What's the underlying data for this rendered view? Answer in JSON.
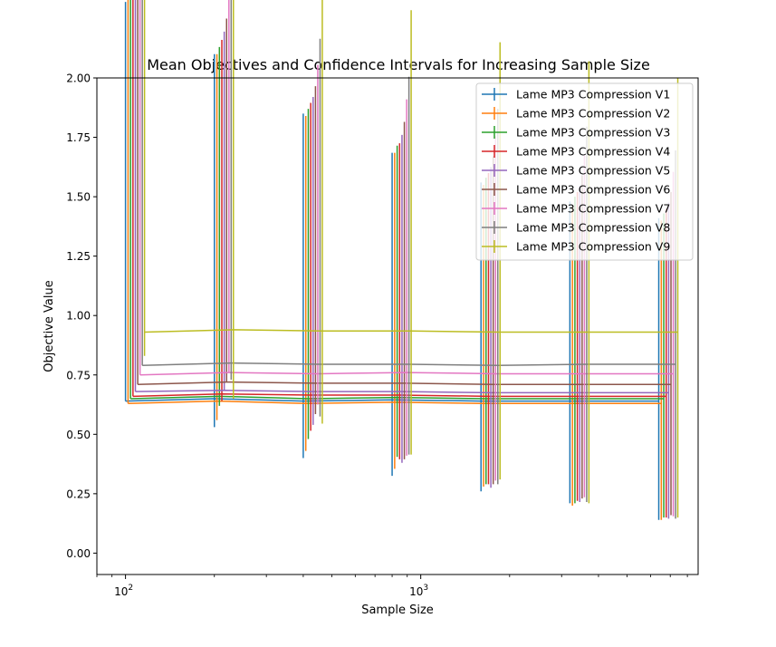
{
  "chart_data": {
    "type": "line",
    "title": "Mean Objectives and Confidence Intervals for Increasing Sample Size",
    "xlabel": "Sample Size",
    "ylabel": "Objective Value",
    "xscale": "log",
    "xlim": [
      80,
      8700
    ],
    "ylim": [
      -0.09,
      2.0
    ],
    "xticks": [
      {
        "value": 100,
        "base": "10",
        "exp": "2"
      },
      {
        "value": 1000,
        "base": "10",
        "exp": "3"
      }
    ],
    "yticks": [
      {
        "value": 0.0,
        "label": "0.00"
      },
      {
        "value": 0.25,
        "label": "0.25"
      },
      {
        "value": 0.5,
        "label": "0.50"
      },
      {
        "value": 0.75,
        "label": "0.75"
      },
      {
        "value": 1.0,
        "label": "1.00"
      },
      {
        "value": 1.25,
        "label": "1.25"
      },
      {
        "value": 1.5,
        "label": "1.50"
      },
      {
        "value": 1.75,
        "label": "1.75"
      },
      {
        "value": 2.0,
        "label": "2.00"
      }
    ],
    "grid": false,
    "legend": {
      "placement": "top-right"
    },
    "series": [
      {
        "name": "Lame MP3 Compression V1",
        "color": "#1f77b4",
        "x": [
          100,
          200,
          400,
          800,
          1600,
          3200,
          6400
        ],
        "y": [
          0.64,
          0.65,
          0.64,
          0.645,
          0.64,
          0.64,
          0.64
        ],
        "err_low": [
          0.0,
          0.12,
          0.24,
          0.32,
          0.38,
          0.43,
          0.5
        ],
        "err_high": [
          1.68,
          1.45,
          1.21,
          1.04,
          0.92,
          0.84,
          0.77
        ]
      },
      {
        "name": "Lame MP3 Compression V2",
        "color": "#ff7f0e",
        "x": [
          102,
          204,
          408,
          816,
          1632,
          3264,
          6528
        ],
        "y": [
          0.63,
          0.64,
          0.63,
          0.635,
          0.63,
          0.63,
          0.63
        ],
        "err_low": [
          0.0,
          0.08,
          0.2,
          0.28,
          0.35,
          0.43,
          0.49
        ],
        "err_high": [
          1.72,
          1.46,
          1.21,
          1.05,
          0.92,
          0.83,
          0.77
        ]
      },
      {
        "name": "Lame MP3 Compression V3",
        "color": "#2ca02c",
        "x": [
          104,
          208,
          416,
          832,
          1664,
          3328,
          6656
        ],
        "y": [
          0.65,
          0.66,
          0.65,
          0.655,
          0.65,
          0.65,
          0.65
        ],
        "err_low": [
          0.0,
          0.04,
          0.17,
          0.25,
          0.36,
          0.44,
          0.5
        ],
        "err_high": [
          1.75,
          1.47,
          1.22,
          1.06,
          0.93,
          0.85,
          0.78
        ]
      },
      {
        "name": "Lame MP3 Compression V4",
        "color": "#d62728",
        "x": [
          106,
          212,
          424,
          848,
          1696,
          3392,
          6784
        ],
        "y": [
          0.66,
          0.67,
          0.665,
          0.665,
          0.66,
          0.66,
          0.66
        ],
        "err_low": [
          0.0,
          0.03,
          0.15,
          0.27,
          0.37,
          0.44,
          0.51
        ],
        "err_high": [
          1.78,
          1.49,
          1.23,
          1.06,
          0.94,
          0.86,
          0.79
        ]
      },
      {
        "name": "Lame MP3 Compression V5",
        "color": "#9467bd",
        "x": [
          108,
          216,
          432,
          864,
          1728,
          3456,
          6912
        ],
        "y": [
          0.68,
          0.685,
          0.68,
          0.68,
          0.675,
          0.675,
          0.675
        ],
        "err_low": [
          0.0,
          0.0,
          0.14,
          0.3,
          0.4,
          0.46,
          0.53
        ],
        "err_high": [
          1.81,
          1.51,
          1.24,
          1.08,
          0.95,
          0.87,
          0.8
        ]
      },
      {
        "name": "Lame MP3 Compression V6",
        "color": "#8c564b",
        "x": [
          110,
          220,
          440,
          880,
          1760,
          3520,
          7040
        ],
        "y": [
          0.71,
          0.72,
          0.715,
          0.715,
          0.71,
          0.71,
          0.71
        ],
        "err_low": [
          0.0,
          0.0,
          0.13,
          0.32,
          0.42,
          0.48,
          0.55
        ],
        "err_high": [
          1.83,
          1.53,
          1.25,
          1.1,
          0.96,
          0.88,
          0.81
        ]
      },
      {
        "name": "Lame MP3 Compression V7",
        "color": "#e377c2",
        "x": [
          112,
          224,
          448,
          896,
          1792,
          3584,
          7168
        ],
        "y": [
          0.75,
          0.76,
          0.755,
          0.76,
          0.755,
          0.755,
          0.755
        ],
        "err_low": [
          0.0,
          0.0,
          0.13,
          0.35,
          0.45,
          0.52,
          0.6
        ],
        "err_high": [
          1.9,
          1.57,
          1.3,
          1.15,
          1.0,
          0.92,
          0.85
        ]
      },
      {
        "name": "Lame MP3 Compression V8",
        "color": "#7f7f7f",
        "x": [
          114,
          228,
          456,
          912,
          1824,
          3648,
          7296
        ],
        "y": [
          0.79,
          0.8,
          0.795,
          0.795,
          0.79,
          0.795,
          0.795
        ],
        "err_low": [
          0.0,
          0.07,
          0.22,
          0.38,
          0.5,
          0.58,
          0.65
        ],
        "err_high": [
          1.9,
          1.62,
          1.37,
          1.21,
          1.08,
          1.0,
          0.9
        ]
      },
      {
        "name": "Lame MP3 Compression V9",
        "color": "#bcbd22",
        "x": [
          116,
          232,
          464,
          928,
          1856,
          3712,
          7424
        ],
        "y": [
          0.93,
          0.94,
          0.935,
          0.935,
          0.93,
          0.93,
          0.93
        ],
        "err_low": [
          0.1,
          0.29,
          0.39,
          0.52,
          0.62,
          0.72,
          0.78
        ],
        "err_high": [
          1.81,
          1.66,
          1.51,
          1.35,
          1.22,
          1.14,
          1.07
        ]
      }
    ]
  }
}
